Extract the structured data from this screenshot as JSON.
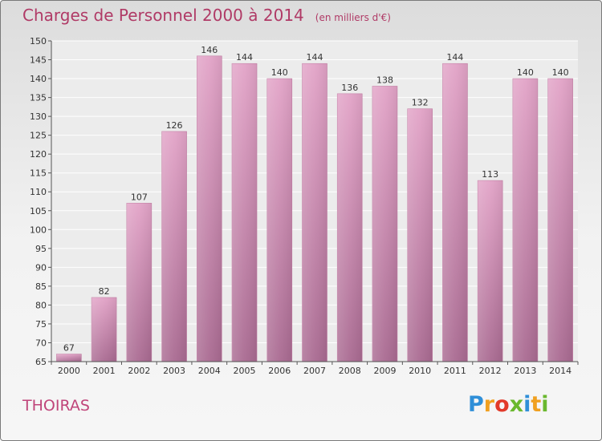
{
  "title": "Charges de Personnel 2000 à 2014",
  "subtitle": "(en milliers d'€)",
  "commune": "THOIRAS",
  "logo": {
    "text": "Proxiti",
    "letters": [
      "P",
      "r",
      "o",
      "x",
      "i",
      "t",
      "i"
    ],
    "colors": [
      "#2f8fd8",
      "#f0a020",
      "#e23a2a",
      "#6ab82e",
      "#2f8fd8",
      "#f0a020",
      "#6ab82e"
    ]
  },
  "colors": {
    "bar": "#d48cb4",
    "bar_dark": "#b86a97",
    "title": "#b03a66"
  },
  "chart_data": {
    "type": "bar",
    "categories": [
      "2000",
      "2001",
      "2002",
      "2003",
      "2004",
      "2005",
      "2006",
      "2007",
      "2008",
      "2009",
      "2010",
      "2011",
      "2012",
      "2013",
      "2014"
    ],
    "values": [
      67,
      82,
      107,
      126,
      146,
      144,
      140,
      144,
      136,
      138,
      132,
      144,
      113,
      140,
      140
    ],
    "data_labels": [
      "67",
      "82",
      "107",
      "126",
      "146",
      "144",
      "140",
      "144",
      "136",
      "138",
      "132",
      "144",
      "113",
      "140",
      "140"
    ],
    "ylim": [
      65,
      150
    ],
    "yticks": [
      "65",
      "70",
      "75",
      "80",
      "85",
      "90",
      "95",
      "100",
      "105",
      "110",
      "115",
      "120",
      "125",
      "130",
      "135",
      "140",
      "145",
      "150"
    ],
    "grid": true
  }
}
